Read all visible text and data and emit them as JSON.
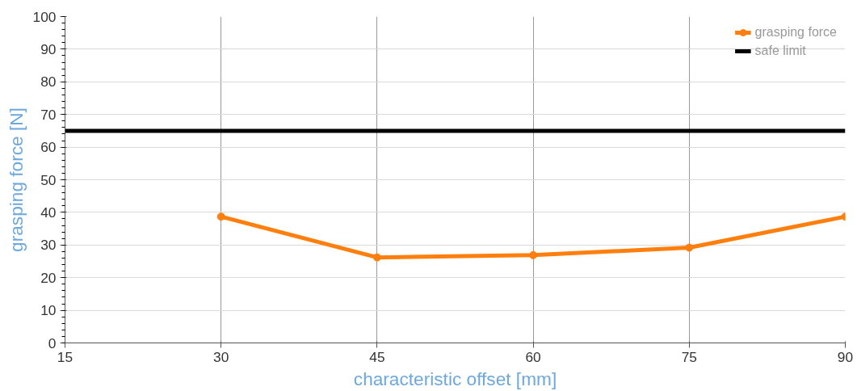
{
  "chart_data": {
    "type": "line",
    "xlabel": "characteristic offset [mm]",
    "ylabel": "grasping force [N]",
    "xlim": [
      15,
      90
    ],
    "xticks": [
      15,
      30,
      45,
      60,
      75,
      90
    ],
    "ylim": [
      0,
      100
    ],
    "yticks": [
      0,
      10,
      20,
      30,
      40,
      50,
      60,
      70,
      80,
      90,
      100
    ],
    "grid": true,
    "legend": "top right",
    "series": [
      {
        "name": "grasping force",
        "color": "#ff7f0e",
        "x": [
          30,
          45,
          60,
          75,
          90
        ],
        "values": [
          38.7,
          26.2,
          26.9,
          29.2,
          38.7
        ],
        "marker": "circle"
      },
      {
        "name": "safe limit",
        "color": "#000000",
        "x": [
          15,
          90
        ],
        "values": [
          65,
          65
        ],
        "marker": "none"
      }
    ]
  }
}
